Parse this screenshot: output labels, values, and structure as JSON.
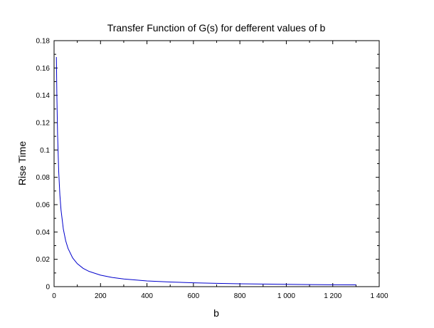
{
  "chart_data": {
    "type": "line",
    "title": "Transfer Function of G(s) for defferent values of b",
    "xlabel": "b",
    "ylabel": "Rise Time",
    "xlim": [
      0,
      1400
    ],
    "ylim": [
      0,
      0.18
    ],
    "grid": false,
    "legend": "none",
    "x_ticks": [
      0,
      200,
      400,
      600,
      800,
      1000,
      1200,
      1400
    ],
    "x_tick_labels": [
      "0",
      "200",
      "400",
      "600",
      "800",
      "1 000",
      "1 200",
      "1 400"
    ],
    "y_ticks": [
      0,
      0.02,
      0.04,
      0.06,
      0.08,
      0.1,
      0.12,
      0.14,
      0.16,
      0.18
    ],
    "y_tick_labels": [
      "0",
      "0.02",
      "0.04",
      "0.06",
      "0.08",
      "0.1",
      "0.12",
      "0.14",
      "0.16",
      "0.18"
    ],
    "series": [
      {
        "color": "#0000cc",
        "x": [
          10,
          12,
          15,
          20,
          25,
          30,
          40,
          50,
          60,
          80,
          100,
          125,
          150,
          200,
          250,
          300,
          400,
          500,
          600,
          700,
          800,
          900,
          1000,
          1100,
          1200,
          1300
        ],
        "y": [
          0.168,
          0.14,
          0.112,
          0.084,
          0.067,
          0.056,
          0.042,
          0.0336,
          0.028,
          0.021,
          0.0168,
          0.0134,
          0.0112,
          0.0084,
          0.0067,
          0.0056,
          0.0042,
          0.0034,
          0.0028,
          0.0024,
          0.0021,
          0.0019,
          0.0017,
          0.0015,
          0.0014,
          0.0013
        ]
      }
    ]
  }
}
